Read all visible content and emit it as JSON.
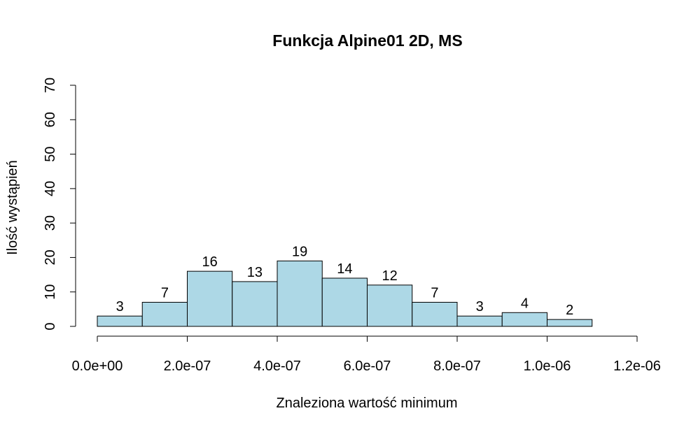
{
  "chart_data": {
    "type": "bar",
    "title": "Funkcja Alpine01 2D, MS",
    "xlabel": "Znaleziona wartość minimum",
    "ylabel": "Ilość wystąpień",
    "bin_edges": [
      0.0,
      1e-07,
      2e-07,
      3e-07,
      4e-07,
      5e-07,
      6e-07,
      7e-07,
      8e-07,
      9e-07,
      1e-06,
      1.1e-06
    ],
    "values": [
      3,
      7,
      16,
      13,
      19,
      14,
      12,
      7,
      3,
      4,
      2
    ],
    "data_labels": [
      "3",
      "7",
      "16",
      "13",
      "19",
      "14",
      "12",
      "7",
      "3",
      "4",
      "2"
    ],
    "xlim": [
      0.0,
      1.2e-06
    ],
    "ylim": [
      0,
      70
    ],
    "x_ticks": [
      0.0,
      2e-07,
      4e-07,
      6e-07,
      8e-07,
      1e-06,
      1.2e-06
    ],
    "x_tick_labels": [
      "0.0e+00",
      "2.0e-07",
      "4.0e-07",
      "6.0e-07",
      "8.0e-07",
      "1.0e-06",
      "1.2e-06"
    ],
    "y_ticks": [
      0,
      10,
      20,
      30,
      40,
      50,
      60,
      70
    ],
    "y_tick_labels": [
      "0",
      "10",
      "20",
      "30",
      "40",
      "50",
      "60",
      "70"
    ],
    "bar_color": "#add8e6",
    "grid": false
  }
}
